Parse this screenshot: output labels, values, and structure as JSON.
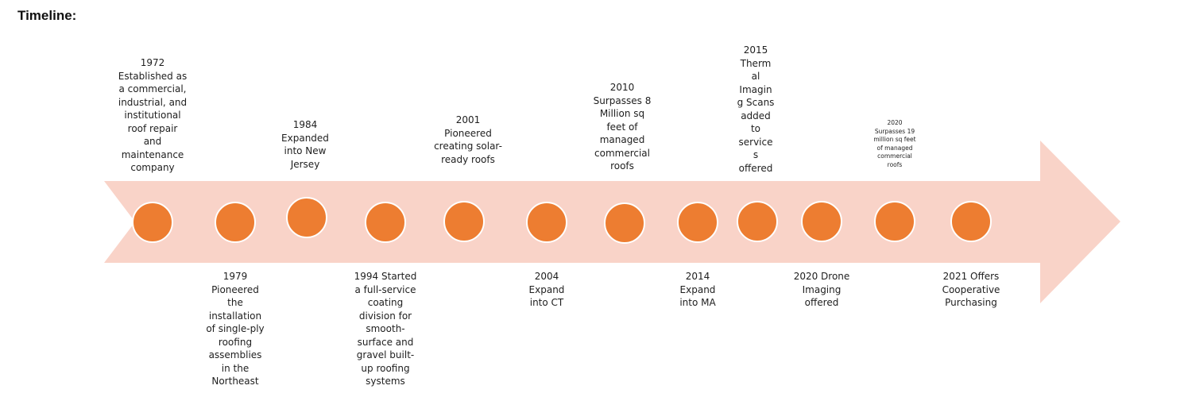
{
  "heading": "Timeline:",
  "timeline": {
    "milestones": [
      {
        "id": "1972",
        "text": "1972\nEstablished as\na commercial,\nindustrial, and\ninstitutional\nroof repair\nand\nmaintenance\ncompany"
      },
      {
        "id": "1979",
        "text": "1979\nPioneered\nthe\ninstallation\nof single-ply\nroofing\nassemblies\nin the\nNortheast"
      },
      {
        "id": "1984",
        "text": "1984\nExpanded\ninto New\nJersey"
      },
      {
        "id": "1994",
        "text": "1994  Started\na full-service\ncoating\ndivision for\nsmooth-\nsurface and\ngravel built-\nup roofing\nsystems"
      },
      {
        "id": "2001",
        "text": "2001\nPioneered\ncreating solar-\nready roofs"
      },
      {
        "id": "2004",
        "text": "2004\nExpand\ninto CT"
      },
      {
        "id": "2010",
        "text": "2010\nSurpasses 8\nMillion sq\nfeet of\nmanaged\ncommercial\nroofs"
      },
      {
        "id": "2014",
        "text": "2014\nExpand\ninto MA"
      },
      {
        "id": "2015",
        "text": "2015\nTherm\nal\nImagin\ng Scans\nadded\nto\nservice\ns\noffered"
      },
      {
        "id": "2020-drone",
        "text": "2020 Drone\nImaging\noffered"
      },
      {
        "id": "2020-19m",
        "text": "2020\nSurpasses 19\nmillion sq feet\nof managed\ncommercial\nroofs"
      },
      {
        "id": "2021",
        "text": "2021 Offers\nCooperative\nPurchasing"
      }
    ]
  }
}
